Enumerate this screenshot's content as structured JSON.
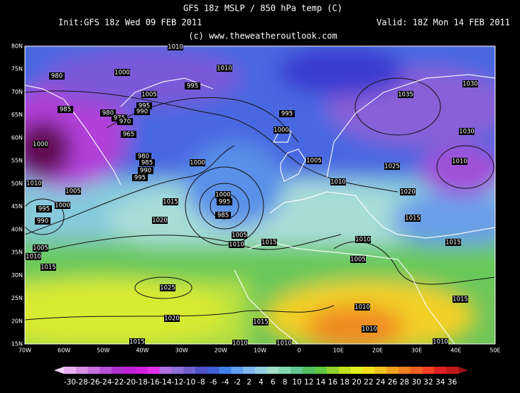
{
  "header": {
    "title": "GFS 18z MSLP / 850 hPa temp (C)",
    "init": "Init:GFS 18z Wed 09 FEB 2011",
    "valid": "Valid: 18Z Mon 14 FEB 2011",
    "credit": "(c) www.theweatheroutlook.com"
  },
  "latitude_labels": [
    "80N",
    "75N",
    "70N",
    "65N",
    "60N",
    "55N",
    "50N",
    "45N",
    "40N",
    "35N",
    "30N",
    "25N",
    "20N",
    "15N"
  ],
  "longitude_labels": [
    "70W",
    "60W",
    "50W",
    "40W",
    "30W",
    "20W",
    "10W",
    "0",
    "10E",
    "20E",
    "30E",
    "40E",
    "50E"
  ],
  "isobar_labels": [
    1010,
    1010,
    980,
    1000,
    1005,
    995,
    995,
    990,
    985,
    980,
    975,
    970,
    965,
    1000,
    980,
    985,
    990,
    995,
    1000,
    995,
    1000,
    1005,
    1010,
    1025,
    1020,
    1035,
    1030,
    1030,
    1010,
    1010,
    1005,
    1000,
    995,
    990,
    1000,
    995,
    985,
    1015,
    1020,
    1005,
    1010,
    1015,
    1015,
    1010,
    1015,
    1005,
    1010,
    1015,
    1005,
    1025,
    1015,
    1010,
    1020,
    1015,
    1010,
    1015,
    1010,
    1010,
    1010
  ],
  "colorbar_labels": [
    -30,
    -28,
    -26,
    -24,
    -22,
    -20,
    -18,
    -16,
    -14,
    -12,
    -10,
    -8,
    -6,
    -4,
    -2,
    2,
    4,
    6,
    8,
    10,
    12,
    14,
    16,
    18,
    20,
    22,
    24,
    26,
    28,
    30,
    32,
    34,
    36
  ]
}
